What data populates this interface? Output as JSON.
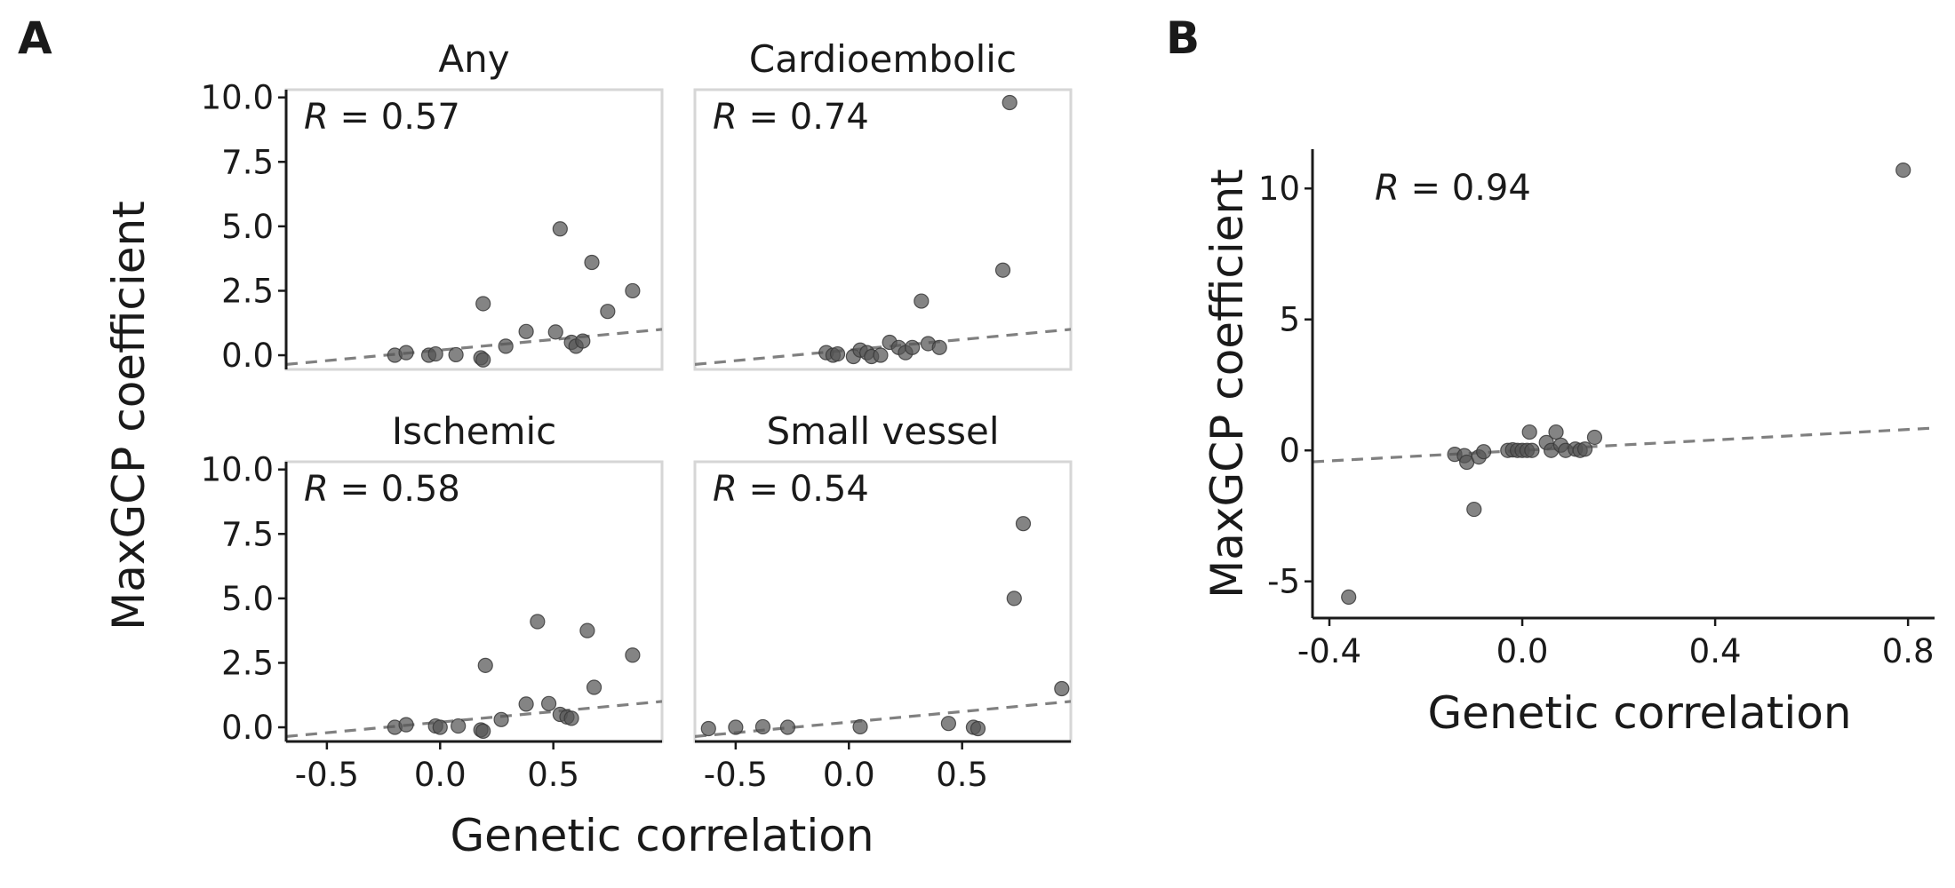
{
  "panel_letters": {
    "a": "A",
    "b": "B"
  },
  "chart_data": [
    {
      "type": "scatter",
      "panel": "A",
      "xlabel": "Genetic correlation",
      "ylabel": "MaxGCP coefficient",
      "xlim": [
        -0.68,
        0.98
      ],
      "ylim": [
        -0.55,
        10.3
      ],
      "xticks": [
        -0.5,
        0.0,
        0.5
      ],
      "xtick_labels": [
        "-0.5",
        "0.0",
        "0.5"
      ],
      "yticks": [
        0,
        2.5,
        5,
        7.5,
        10
      ],
      "ytick_labels": [
        "0.0",
        "2.5",
        "5.0",
        "7.5",
        "10.0"
      ],
      "facets": [
        {
          "name": "Any",
          "r_label": "= 0.57",
          "fit": {
            "intercept": 0.2,
            "slope": 0.82
          },
          "points": [
            [
              -0.2,
              0.0
            ],
            [
              -0.15,
              0.1
            ],
            [
              -0.05,
              0.0
            ],
            [
              -0.02,
              0.05
            ],
            [
              0.07,
              0.02
            ],
            [
              0.18,
              -0.1
            ],
            [
              0.19,
              2.0
            ],
            [
              0.19,
              -0.18
            ],
            [
              0.29,
              0.35
            ],
            [
              0.38,
              0.92
            ],
            [
              0.51,
              0.9
            ],
            [
              0.53,
              4.9
            ],
            [
              0.58,
              0.5
            ],
            [
              0.6,
              0.35
            ],
            [
              0.63,
              0.55
            ],
            [
              0.67,
              3.6
            ],
            [
              0.74,
              1.7
            ],
            [
              0.85,
              2.5
            ]
          ]
        },
        {
          "name": "Cardioembolic",
          "r_label": "= 0.74",
          "fit": {
            "intercept": 0.2,
            "slope": 0.82
          },
          "points": [
            [
              -0.1,
              0.1
            ],
            [
              -0.07,
              0.0
            ],
            [
              -0.05,
              0.05
            ],
            [
              0.02,
              -0.05
            ],
            [
              0.05,
              0.2
            ],
            [
              0.08,
              0.1
            ],
            [
              0.1,
              -0.05
            ],
            [
              0.14,
              0.0
            ],
            [
              0.18,
              0.5
            ],
            [
              0.22,
              0.3
            ],
            [
              0.25,
              0.1
            ],
            [
              0.28,
              0.3
            ],
            [
              0.32,
              2.1
            ],
            [
              0.35,
              0.45
            ],
            [
              0.4,
              0.3
            ],
            [
              0.68,
              3.3
            ],
            [
              0.71,
              9.8
            ]
          ]
        },
        {
          "name": "Ischemic",
          "r_label": "= 0.58",
          "fit": {
            "intercept": 0.2,
            "slope": 0.82
          },
          "points": [
            [
              -0.2,
              0.0
            ],
            [
              -0.15,
              0.1
            ],
            [
              -0.02,
              0.05
            ],
            [
              0.0,
              0.0
            ],
            [
              0.08,
              0.05
            ],
            [
              0.18,
              -0.1
            ],
            [
              0.19,
              -0.15
            ],
            [
              0.2,
              2.4
            ],
            [
              0.27,
              0.3
            ],
            [
              0.38,
              0.9
            ],
            [
              0.43,
              4.1
            ],
            [
              0.48,
              0.92
            ],
            [
              0.53,
              0.5
            ],
            [
              0.56,
              0.4
            ],
            [
              0.58,
              0.35
            ],
            [
              0.65,
              3.75
            ],
            [
              0.68,
              1.55
            ],
            [
              0.85,
              2.8
            ]
          ]
        },
        {
          "name": "Small vessel",
          "r_label": "= 0.54",
          "fit": {
            "intercept": 0.2,
            "slope": 0.82
          },
          "points": [
            [
              -0.62,
              -0.05
            ],
            [
              -0.5,
              0.0
            ],
            [
              -0.38,
              0.02
            ],
            [
              -0.27,
              0.0
            ],
            [
              0.05,
              0.02
            ],
            [
              0.44,
              0.15
            ],
            [
              0.55,
              0.0
            ],
            [
              0.57,
              -0.05
            ],
            [
              0.73,
              5.0
            ],
            [
              0.77,
              7.9
            ],
            [
              0.94,
              1.5
            ]
          ]
        }
      ]
    },
    {
      "type": "scatter",
      "panel": "B",
      "xlabel": "Genetic correlation",
      "ylabel": "MaxGCP coefficient",
      "xlim": [
        -0.435,
        0.855
      ],
      "ylim": [
        -6.4,
        11.5
      ],
      "xticks": [
        -0.4,
        0.0,
        0.4,
        0.8
      ],
      "xtick_labels": [
        "-0.4",
        "0.0",
        "0.4",
        "0.8"
      ],
      "yticks": [
        -5,
        0,
        5,
        10
      ],
      "ytick_labels": [
        "-5",
        "0",
        "5",
        "10"
      ],
      "r_label": "= 0.94",
      "fit": {
        "intercept": 0.0,
        "slope": 1.0
      },
      "points": [
        [
          -0.36,
          -5.6
        ],
        [
          -0.14,
          -0.15
        ],
        [
          -0.12,
          -0.2
        ],
        [
          -0.115,
          -0.45
        ],
        [
          -0.1,
          -2.25
        ],
        [
          -0.09,
          -0.25
        ],
        [
          -0.08,
          -0.05
        ],
        [
          -0.03,
          0.0
        ],
        [
          -0.02,
          0.02
        ],
        [
          -0.01,
          0.0
        ],
        [
          0.0,
          0.0
        ],
        [
          0.01,
          0.0
        ],
        [
          0.015,
          0.7
        ],
        [
          0.02,
          0.0
        ],
        [
          0.05,
          0.3
        ],
        [
          0.06,
          0.0
        ],
        [
          0.07,
          0.7
        ],
        [
          0.08,
          0.2
        ],
        [
          0.09,
          0.0
        ],
        [
          0.11,
          0.05
        ],
        [
          0.12,
          0.0
        ],
        [
          0.13,
          0.05
        ],
        [
          0.15,
          0.5
        ],
        [
          0.79,
          10.7
        ]
      ]
    }
  ]
}
